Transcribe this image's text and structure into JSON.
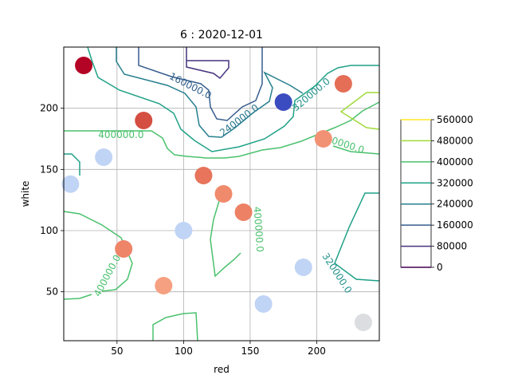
{
  "chart_data": {
    "type": "scatter",
    "title": "6 : 2020-12-01",
    "xlabel": "red",
    "ylabel": "white",
    "xlim": [
      10,
      247
    ],
    "ylim": [
      10,
      250
    ],
    "xticks": [
      50,
      100,
      150,
      200
    ],
    "yticks": [
      50,
      100,
      150,
      200
    ],
    "grid": true,
    "points": [
      {
        "x": 25,
        "y": 235,
        "color": "#b40426"
      },
      {
        "x": 70,
        "y": 190,
        "color": "#d44e41"
      },
      {
        "x": 40,
        "y": 160,
        "color": "#c0d4f5"
      },
      {
        "x": 15,
        "y": 138,
        "color": "#c0d4f5"
      },
      {
        "x": 115,
        "y": 145,
        "color": "#e7745b"
      },
      {
        "x": 130,
        "y": 130,
        "color": "#f08a6c"
      },
      {
        "x": 145,
        "y": 115,
        "color": "#ec8165"
      },
      {
        "x": 100,
        "y": 100,
        "color": "#c0d4f5"
      },
      {
        "x": 55,
        "y": 85,
        "color": "#ee8468"
      },
      {
        "x": 85,
        "y": 55,
        "color": "#f5a081"
      },
      {
        "x": 160,
        "y": 40,
        "color": "#c0d4f5"
      },
      {
        "x": 190,
        "y": 70,
        "color": "#c0d4f5"
      },
      {
        "x": 235,
        "y": 25,
        "color": "#dcdde1"
      },
      {
        "x": 175,
        "y": 205,
        "color": "#3b4cc0"
      },
      {
        "x": 220,
        "y": 220,
        "color": "#e46e56"
      },
      {
        "x": 205,
        "y": 175,
        "color": "#f29274"
      }
    ],
    "contour_labels": [
      {
        "text": "160000.0",
        "x": 105,
        "y": 218,
        "rotate": 27,
        "color": "#2f5f8a"
      },
      {
        "text": "240000.0",
        "x": 142,
        "y": 190,
        "rotate": -37,
        "color": "#2a788e"
      },
      {
        "text": "320000.0",
        "x": 196,
        "y": 211,
        "rotate": -40,
        "color": "#21918c"
      },
      {
        "text": "400000.0",
        "x": 53,
        "y": 178,
        "rotate": 0,
        "color": "#4ac16d"
      },
      {
        "text": "400000.0",
        "x": 219,
        "y": 171,
        "rotate": 18,
        "color": "#4ac16d"
      },
      {
        "text": "400000.0",
        "x": 156,
        "y": 101,
        "rotate": 86,
        "color": "#4ac16d"
      },
      {
        "text": "400000.0",
        "x": 43,
        "y": 63,
        "rotate": -62,
        "color": "#4ac16d"
      },
      {
        "text": "320000.0",
        "x": 215,
        "y": 65,
        "rotate": 57,
        "color": "#21918c"
      }
    ],
    "colorbar": {
      "ticks": [
        "0",
        "80000",
        "160000",
        "240000",
        "320000",
        "400000",
        "480000",
        "560000"
      ],
      "levels": [
        {
          "value": 0,
          "color": "#440154"
        },
        {
          "value": 80000,
          "color": "#46327e"
        },
        {
          "value": 160000,
          "color": "#365c8d"
        },
        {
          "value": 240000,
          "color": "#277f8e"
        },
        {
          "value": 320000,
          "color": "#1fa187"
        },
        {
          "value": 400000,
          "color": "#4ac16d"
        },
        {
          "value": 480000,
          "color": "#a0da39"
        },
        {
          "value": 560000,
          "color": "#fde725"
        }
      ]
    }
  }
}
